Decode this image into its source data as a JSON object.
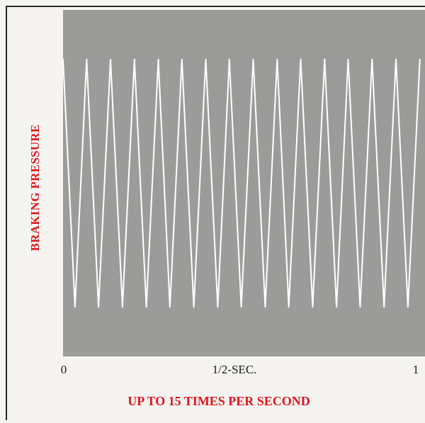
{
  "chart_data": {
    "type": "line",
    "ylabel": "BRAKING PRESSURE",
    "xlabel": "",
    "x_tick_labels": [
      "0",
      "1/2-SEC.",
      "1"
    ],
    "caption": "UP TO 15 TIMES PER SECOND",
    "xlim": [
      0,
      1.06
    ],
    "ylim": [
      0,
      1
    ],
    "series": [
      {
        "x": [
          0.0,
          0.035,
          0.069,
          0.104,
          0.139,
          0.174,
          0.209,
          0.244,
          0.279,
          0.313,
          0.348,
          0.383,
          0.418,
          0.453,
          0.487,
          0.522,
          0.557,
          0.592,
          0.627,
          0.661,
          0.696,
          0.731,
          0.766,
          0.801,
          0.835,
          0.87,
          0.905,
          0.94,
          0.975,
          1.01,
          1.045
        ],
        "y": [
          0.87,
          0.13,
          0.87,
          0.13,
          0.87,
          0.13,
          0.87,
          0.13,
          0.87,
          0.13,
          0.87,
          0.13,
          0.87,
          0.13,
          0.87,
          0.13,
          0.87,
          0.13,
          0.87,
          0.13,
          0.87,
          0.13,
          0.87,
          0.13,
          0.87,
          0.13,
          0.87,
          0.13,
          0.87,
          0.13,
          0.87
        ]
      }
    ],
    "colors": {
      "plot_background": "#9b9c99",
      "line": "#ffffff",
      "label": "#e3141c"
    }
  }
}
